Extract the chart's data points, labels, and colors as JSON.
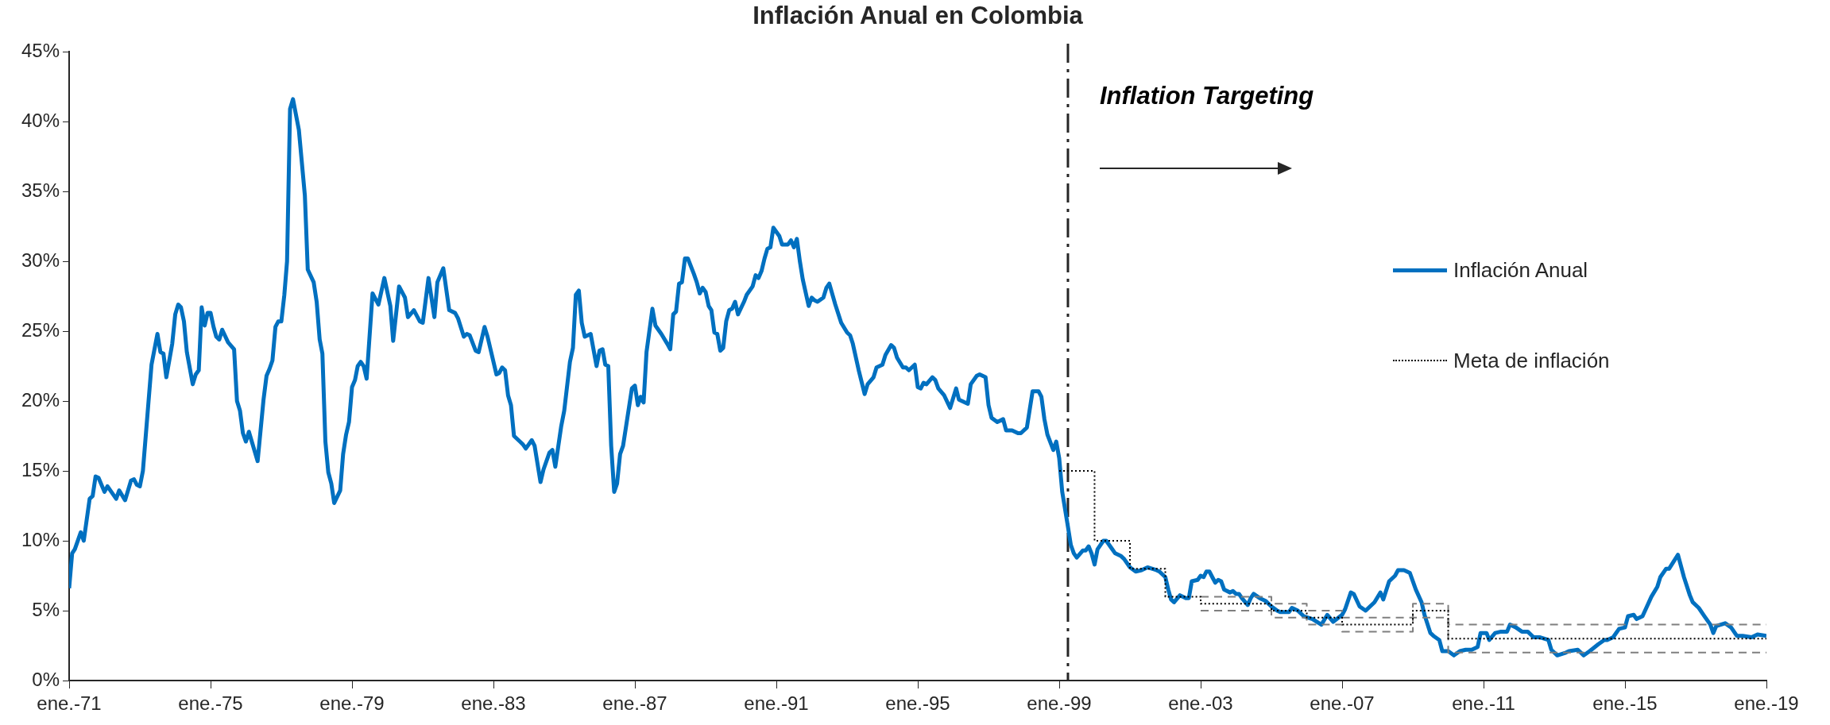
{
  "chart_data": {
    "type": "line",
    "title": "Inflación Anual en Colombia",
    "annotations": [
      "Inflation Targeting"
    ],
    "xlim": [
      "1971-01",
      "2019-01"
    ],
    "xticks": [
      {
        "value": "1971-01",
        "label": "ene.-71"
      },
      {
        "value": "1975-01",
        "label": "ene.-75"
      },
      {
        "value": "1979-01",
        "label": "ene.-79"
      },
      {
        "value": "1983-01",
        "label": "ene.-83"
      },
      {
        "value": "1987-01",
        "label": "ene.-87"
      },
      {
        "value": "1991-01",
        "label": "ene.-91"
      },
      {
        "value": "1995-01",
        "label": "ene.-95"
      },
      {
        "value": "1999-01",
        "label": "ene.-99"
      },
      {
        "value": "2003-01",
        "label": "ene.-03"
      },
      {
        "value": "2007-01",
        "label": "ene.-07"
      },
      {
        "value": "2011-01",
        "label": "ene.-11"
      },
      {
        "value": "2015-01",
        "label": "ene.-15"
      },
      {
        "value": "2019-01",
        "label": "ene.-19"
      }
    ],
    "ylim": [
      0,
      45
    ],
    "yticks": [
      {
        "value": 0,
        "label": "0%"
      },
      {
        "value": 5,
        "label": "5%"
      },
      {
        "value": 10,
        "label": "10%"
      },
      {
        "value": 15,
        "label": "15%"
      },
      {
        "value": 20,
        "label": "20%"
      },
      {
        "value": 25,
        "label": "25%"
      },
      {
        "value": 30,
        "label": "30%"
      },
      {
        "value": 35,
        "label": "35%"
      },
      {
        "value": 40,
        "label": "40%"
      },
      {
        "value": 45,
        "label": "45%"
      }
    ],
    "legend": "right",
    "ref_lines": [
      {
        "axis": "x",
        "value": "1999-04",
        "color": "#262626",
        "line_style": "dashed"
      }
    ],
    "series": [
      {
        "name": "Inflación Anual",
        "color": "#0070c0",
        "line_style": "solid",
        "x": [
          "1971-01",
          "1971-02",
          "1971-03",
          "1971-05",
          "1971-06",
          "1971-08",
          "1971-09",
          "1971-10",
          "1971-11",
          "1972-01",
          "1972-02",
          "1972-05",
          "1972-06",
          "1972-08",
          "1972-10",
          "1972-11",
          "1972-12",
          "1973-01",
          "1973-02",
          "1973-05",
          "1973-07",
          "1973-08",
          "1973-09",
          "1973-10",
          "1973-12",
          "1974-01",
          "1974-02",
          "1974-03",
          "1974-04",
          "1974-05",
          "1974-07",
          "1974-08",
          "1974-09",
          "1974-10",
          "1974-11",
          "1974-12",
          "1975-01",
          "1975-02",
          "1975-03",
          "1975-04",
          "1975-05",
          "1975-07",
          "1975-09",
          "1975-10",
          "1975-11",
          "1975-12",
          "1976-01",
          "1976-02",
          "1976-05",
          "1976-07",
          "1976-08",
          "1976-09",
          "1976-10",
          "1976-11",
          "1976-12",
          "1977-01",
          "1977-02",
          "1977-03",
          "1977-04",
          "1977-05",
          "1977-07",
          "1977-09",
          "1977-10",
          "1977-12",
          "1978-01",
          "1978-02",
          "1978-03",
          "1978-04",
          "1978-05",
          "1978-06",
          "1978-07",
          "1978-09",
          "1978-10",
          "1978-11",
          "1978-12",
          "1979-01",
          "1979-02",
          "1979-03",
          "1979-04",
          "1979-05",
          "1979-06",
          "1979-08",
          "1979-10",
          "1979-12",
          "1980-02",
          "1980-03",
          "1980-05",
          "1980-07",
          "1980-08",
          "1980-10",
          "1980-12",
          "1981-01",
          "1981-03",
          "1981-05",
          "1981-06",
          "1981-08",
          "1981-10",
          "1981-12",
          "1982-01",
          "1982-03",
          "1982-04",
          "1982-05",
          "1982-07",
          "1982-08",
          "1982-10",
          "1982-11",
          "1983-02",
          "1983-03",
          "1983-04",
          "1983-05",
          "1983-06",
          "1983-07",
          "1983-08",
          "1983-10",
          "1983-11",
          "1983-12",
          "1984-02",
          "1984-03",
          "1984-05",
          "1984-06",
          "1984-08",
          "1984-09",
          "1984-10",
          "1984-12",
          "1985-01",
          "1985-03",
          "1985-04",
          "1985-05",
          "1985-06",
          "1985-07",
          "1985-08",
          "1985-10",
          "1985-12",
          "1986-01",
          "1986-02",
          "1986-03",
          "1986-04",
          "1986-05",
          "1986-06",
          "1986-07",
          "1986-08",
          "1986-09",
          "1986-12",
          "1987-01",
          "1987-02",
          "1987-03",
          "1987-04",
          "1987-05",
          "1987-07",
          "1987-08",
          "1987-10",
          "1987-12",
          "1988-01",
          "1988-02",
          "1988-03",
          "1988-04",
          "1988-05",
          "1988-06",
          "1988-07",
          "1988-09",
          "1988-10",
          "1988-11",
          "1988-12",
          "1989-01",
          "1989-02",
          "1989-03",
          "1989-04",
          "1989-05",
          "1989-06",
          "1989-07",
          "1989-08",
          "1989-09",
          "1989-10",
          "1989-11",
          "1989-12",
          "1990-02",
          "1990-03",
          "1990-05",
          "1990-06",
          "1990-07",
          "1990-08",
          "1990-09",
          "1990-10",
          "1990-11",
          "1990-12",
          "1991-02",
          "1991-03",
          "1991-05",
          "1991-06",
          "1991-07",
          "1991-08",
          "1991-09",
          "1991-10",
          "1991-12",
          "1992-01",
          "1992-02",
          "1992-03",
          "1992-05",
          "1992-06",
          "1992-07",
          "1992-09",
          "1992-11",
          "1993-01",
          "1993-02",
          "1993-03",
          "1993-05",
          "1993-07",
          "1993-08",
          "1993-10",
          "1993-11",
          "1994-01",
          "1994-02",
          "1994-04",
          "1994-05",
          "1994-06",
          "1994-08",
          "1994-09",
          "1994-10",
          "1994-12",
          "1995-01",
          "1995-02",
          "1995-03",
          "1995-04",
          "1995-06",
          "1995-07",
          "1995-08",
          "1995-10",
          "1995-12",
          "1996-02",
          "1996-03",
          "1996-06",
          "1996-07",
          "1996-09",
          "1996-10",
          "1996-12",
          "1997-01",
          "1997-02",
          "1997-04",
          "1997-06",
          "1997-07",
          "1997-09",
          "1997-11",
          "1997-12",
          "1998-02",
          "1998-04",
          "1998-06",
          "1998-07",
          "1998-08",
          "1998-09",
          "1998-11",
          "1998-12",
          "1999-01",
          "1999-02",
          "1999-04",
          "1999-05",
          "1999-06",
          "1999-07",
          "1999-09",
          "1999-10",
          "1999-11",
          "1999-12",
          "2000-01",
          "2000-02",
          "2000-04",
          "2000-05",
          "2000-07",
          "2000-08",
          "2000-10",
          "2000-11",
          "2001-01",
          "2001-03",
          "2001-05",
          "2001-07",
          "2001-10",
          "2001-11",
          "2002-01",
          "2002-02",
          "2002-03",
          "2002-04",
          "2002-06",
          "2002-08",
          "2002-09",
          "2002-10",
          "2002-12",
          "2003-01",
          "2003-02",
          "2003-03",
          "2003-04",
          "2003-05",
          "2003-06",
          "2003-07",
          "2003-08",
          "2003-09",
          "2003-11",
          "2003-12",
          "2004-01",
          "2004-02",
          "2004-03",
          "2004-05",
          "2004-06",
          "2004-07",
          "2004-09",
          "2004-11",
          "2005-01",
          "2005-03",
          "2005-04",
          "2005-07",
          "2005-08",
          "2005-10",
          "2005-12",
          "2006-03",
          "2006-06",
          "2006-08",
          "2006-10",
          "2007-01",
          "2007-02",
          "2007-04",
          "2007-05",
          "2007-07",
          "2007-09",
          "2007-12",
          "2008-02",
          "2008-03",
          "2008-05",
          "2008-07",
          "2008-08",
          "2008-10",
          "2008-11",
          "2008-12",
          "2009-02",
          "2009-04",
          "2009-05",
          "2009-07",
          "2009-08",
          "2009-10",
          "2009-11",
          "2010-01",
          "2010-03",
          "2010-05",
          "2010-07",
          "2010-09",
          "2010-11",
          "2010-12",
          "2011-02",
          "2011-03",
          "2011-05",
          "2011-07",
          "2011-09",
          "2011-10",
          "2011-12",
          "2012-02",
          "2012-04",
          "2012-06",
          "2012-08",
          "2012-11",
          "2012-12",
          "2013-02",
          "2013-05",
          "2013-06",
          "2013-09",
          "2013-11",
          "2014-01",
          "2014-04",
          "2014-06",
          "2014-07",
          "2014-09",
          "2014-11",
          "2015-01",
          "2015-02",
          "2015-04",
          "2015-05",
          "2015-07",
          "2015-10",
          "2015-12",
          "2016-01",
          "2016-03",
          "2016-04",
          "2016-07",
          "2016-09",
          "2016-11",
          "2016-12",
          "2017-02",
          "2017-04",
          "2017-06",
          "2017-07",
          "2017-08",
          "2017-11",
          "2018-01",
          "2018-03",
          "2018-05",
          "2018-08",
          "2018-10",
          "2019-01"
        ],
        "values": [
          6.6,
          9.1,
          9.4,
          10.6,
          10.0,
          13.0,
          13.2,
          14.6,
          14.5,
          13.5,
          13.9,
          13.0,
          13.6,
          12.9,
          14.3,
          14.4,
          14.0,
          13.9,
          15.0,
          22.6,
          24.8,
          23.5,
          23.4,
          21.7,
          24.1,
          26.2,
          26.9,
          26.7,
          25.7,
          23.5,
          21.2,
          21.9,
          22.2,
          26.7,
          25.4,
          26.3,
          26.3,
          25.3,
          24.6,
          24.4,
          25.1,
          24.2,
          23.7,
          20.0,
          19.3,
          17.7,
          17.1,
          17.8,
          15.7,
          20.1,
          21.8,
          22.3,
          22.9,
          25.3,
          25.7,
          25.7,
          27.6,
          30.0,
          40.9,
          41.6,
          39.4,
          34.7,
          29.4,
          28.5,
          27.1,
          24.4,
          23.4,
          17.1,
          14.9,
          14.1,
          12.7,
          13.6,
          16.2,
          17.6,
          18.5,
          21.0,
          21.5,
          22.5,
          22.8,
          22.5,
          21.6,
          27.7,
          26.9,
          28.8,
          26.8,
          24.3,
          28.2,
          27.4,
          26.0,
          26.5,
          25.7,
          25.6,
          28.8,
          26.0,
          28.5,
          29.5,
          26.5,
          26.3,
          25.9,
          24.6,
          24.8,
          24.7,
          23.6,
          23.5,
          25.3,
          24.6,
          21.9,
          22.0,
          22.4,
          22.2,
          20.4,
          19.7,
          17.5,
          17.1,
          16.9,
          16.6,
          17.2,
          16.8,
          14.2,
          15.1,
          16.3,
          16.5,
          15.3,
          18.2,
          19.3,
          22.8,
          23.8,
          27.6,
          27.9,
          25.6,
          24.6,
          24.8,
          22.5,
          23.6,
          23.7,
          22.6,
          22.5,
          16.8,
          13.5,
          14.1,
          16.2,
          16.8,
          20.9,
          21.1,
          19.7,
          20.3,
          19.9,
          23.5,
          26.6,
          25.4,
          24.8,
          24.1,
          23.7,
          26.2,
          26.4,
          28.4,
          28.5,
          30.2,
          30.2,
          29.1,
          28.5,
          27.7,
          28.1,
          27.8,
          26.8,
          26.5,
          24.9,
          24.8,
          23.6,
          23.8,
          25.7,
          26.5,
          26.6,
          27.1,
          26.2,
          27.1,
          27.6,
          28.2,
          29.0,
          28.8,
          29.3,
          30.2,
          30.9,
          31.0,
          32.4,
          31.8,
          31.2,
          31.2,
          31.5,
          31.0,
          31.6,
          30.0,
          28.7,
          26.8,
          27.4,
          27.2,
          27.1,
          27.4,
          28.1,
          28.4,
          26.9,
          25.6,
          24.9,
          24.7,
          24.1,
          22.2,
          20.5,
          21.2,
          21.7,
          22.4,
          22.6,
          23.3,
          24.0,
          23.8,
          23.1,
          22.4,
          22.4,
          22.2,
          22.6,
          21.0,
          20.9,
          21.3,
          21.2,
          21.7,
          21.5,
          20.9,
          20.4,
          19.5,
          20.9,
          20.1,
          19.8,
          21.2,
          21.8,
          21.9,
          21.7,
          19.7,
          18.8,
          18.5,
          18.7,
          17.9,
          17.9,
          17.7,
          17.7,
          18.1,
          20.7,
          20.7,
          20.3,
          18.7,
          17.6,
          16.5,
          17.1,
          15.9,
          13.5,
          11.0,
          9.7,
          9.1,
          8.8,
          9.3,
          9.3,
          9.6,
          9.1,
          8.3,
          9.4,
          10.0,
          10.0,
          9.4,
          9.1,
          8.9,
          8.7,
          8.1,
          7.8,
          7.9,
          8.1,
          7.9,
          7.8,
          7.4,
          6.5,
          5.8,
          5.6,
          6.1,
          5.9,
          5.9,
          7.1,
          7.2,
          7.5,
          7.4,
          7.8,
          7.8,
          7.4,
          7.0,
          7.2,
          7.1,
          6.5,
          6.3,
          6.4,
          6.2,
          6.2,
          5.9,
          5.4,
          5.9,
          6.2,
          5.9,
          5.7,
          5.3,
          5.0,
          4.9,
          4.9,
          5.2,
          5.0,
          4.6,
          4.4,
          4.0,
          4.7,
          4.2,
          4.7,
          5.1,
          6.3,
          6.2,
          5.3,
          5.0,
          5.6,
          6.3,
          5.8,
          7.1,
          7.5,
          7.9,
          7.9,
          7.8,
          7.7,
          6.5,
          5.6,
          4.7,
          3.4,
          3.2,
          2.9,
          2.1,
          2.1,
          1.8,
          2.1,
          2.2,
          2.2,
          2.4,
          3.4,
          3.4,
          2.9,
          3.4,
          3.5,
          3.5,
          4.0,
          3.8,
          3.5,
          3.5,
          3.1,
          3.1,
          2.9,
          2.2,
          1.8,
          2.0,
          2.1,
          2.2,
          1.8,
          2.1,
          2.6,
          2.9,
          2.9,
          3.1,
          3.7,
          3.8,
          4.6,
          4.7,
          4.4,
          4.6,
          6.0,
          6.7,
          7.4,
          8.0,
          8.0,
          9.0,
          7.4,
          6.1,
          5.6,
          5.2,
          4.6,
          4.0,
          3.4,
          3.9,
          4.1,
          3.8,
          3.2,
          3.2,
          3.1,
          3.3,
          3.2
        ]
      },
      {
        "name": "Meta de inflación",
        "type": "step",
        "color": "#000000",
        "line_style": "dotted",
        "x": [
          "1999-01",
          "2000-01",
          "2001-01",
          "2002-01",
          "2003-01",
          "2005-01",
          "2006-01",
          "2007-01",
          "2009-01",
          "2010-01",
          "2019-01"
        ],
        "values": [
          15,
          10,
          8,
          6,
          5.5,
          5,
          4.5,
          4,
          5,
          3,
          3
        ]
      },
      {
        "type": "step",
        "color": "#7f7f7f",
        "line_style": "dashed",
        "x": [
          "2003-01",
          "2005-01",
          "2006-01",
          "2007-01",
          "2009-01",
          "2010-01",
          "2019-01"
        ],
        "values": [
          6,
          5.5,
          5,
          4.5,
          5.5,
          4,
          4
        ]
      },
      {
        "type": "step",
        "color": "#7f7f7f",
        "line_style": "dashed",
        "x": [
          "2003-01",
          "2005-01",
          "2006-01",
          "2007-01",
          "2009-01",
          "2010-01",
          "2019-01"
        ],
        "values": [
          5,
          4.5,
          4,
          3.5,
          4.5,
          2,
          2
        ]
      }
    ]
  }
}
